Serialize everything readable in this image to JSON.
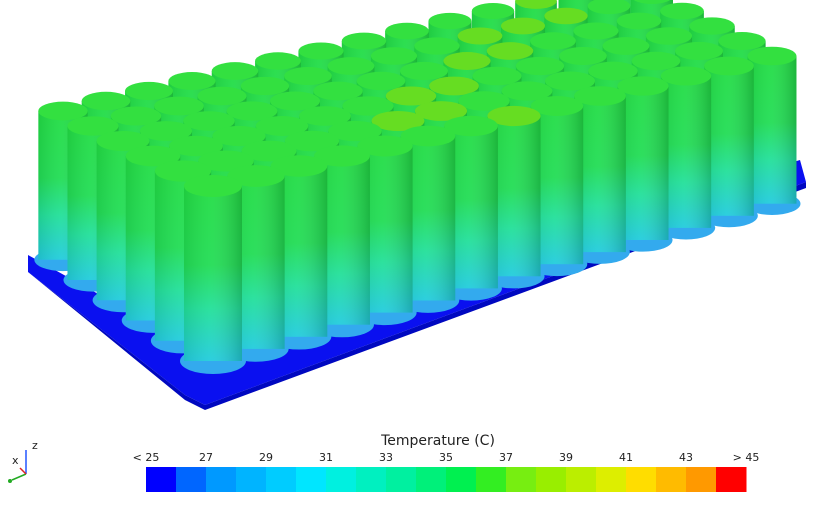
{
  "colorbar": {
    "title": "Temperature (C)",
    "labels": [
      "< 25",
      "27",
      "29",
      "31",
      "33",
      "35",
      "37",
      "39",
      "41",
      "43",
      "> 45"
    ],
    "colors": [
      "#0000ff",
      "#0066ff",
      "#0099ff",
      "#00b4ff",
      "#00ccff",
      "#00e6ff",
      "#00f0e0",
      "#00f0c0",
      "#00f0a0",
      "#00f07a",
      "#00f050",
      "#33ee22",
      "#77ee11",
      "#99ee00",
      "#bbee00",
      "#ddee00",
      "#ffdd00",
      "#ffbb00",
      "#ff9900",
      "#ff6600",
      "#ff0000"
    ]
  },
  "triad": {
    "x": "x",
    "z": "z"
  }
}
